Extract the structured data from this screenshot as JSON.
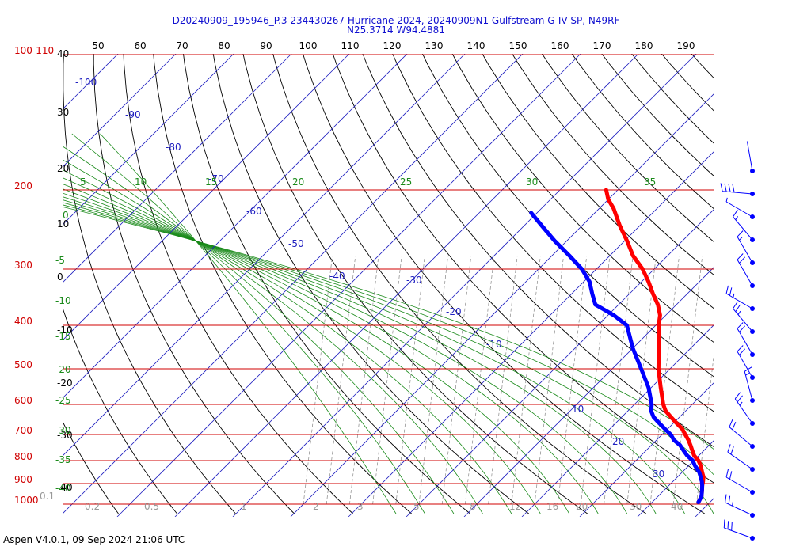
{
  "header": {
    "title_line1": "D20240909_195946_P.3 234430267 Hurricane 2024, 20240909N1 Gulfstream G-IV SP, N49RF",
    "title_line2": "N25.3714 W94.4881"
  },
  "footer": {
    "text": "Aspen V4.0.1, 09 Sep 2024  21:06 UTC"
  },
  "chart_data": {
    "type": "line",
    "subtype": "skew-t log-p",
    "pressure_label_top": "100-110",
    "pressure_labels": [
      "200",
      "300",
      "400",
      "500",
      "600",
      "700",
      "800",
      "900",
      "1000"
    ],
    "pressure_levels": [
      100,
      200,
      300,
      400,
      500,
      600,
      700,
      800,
      900,
      1000
    ],
    "temp_f_labels": [
      "50",
      "60",
      "70",
      "80",
      "90",
      "100",
      "110",
      "120",
      "130",
      "140",
      "150",
      "160",
      "170",
      "180",
      "190"
    ],
    "temp_c_labels": [
      "40",
      "30",
      "20",
      "10",
      "0",
      "-10",
      "-20",
      "-30",
      "-40"
    ],
    "isotherm_labels": [
      "-100",
      "-90",
      "-80",
      "-70",
      "-60",
      "-50",
      "-40",
      "-30",
      "-20",
      "-10",
      "10",
      "20",
      "30"
    ],
    "dry_adiabat_labels": [
      "5",
      "10",
      "15",
      "20",
      "25",
      "30",
      "35"
    ],
    "wet_adiabat_labels": [
      "0",
      "-5",
      "-10",
      "-15",
      "-20",
      "-25",
      "-30",
      "-35",
      "-40"
    ],
    "mixing_ratio_labels": [
      "0.1",
      "0.2",
      "0.5",
      "1",
      "2",
      "3",
      "5",
      "8",
      "12",
      "16",
      "20",
      "30",
      "40"
    ],
    "series": [
      {
        "role": "temperature",
        "color": "#ff0000",
        "points": [
          [
            200,
            -42
          ],
          [
            210,
            -40
          ],
          [
            220,
            -37.5
          ],
          [
            240,
            -33.5
          ],
          [
            260,
            -29.5
          ],
          [
            280,
            -26
          ],
          [
            300,
            -22
          ],
          [
            320,
            -18.8
          ],
          [
            340,
            -16
          ],
          [
            360,
            -13.2
          ],
          [
            380,
            -11
          ],
          [
            400,
            -9.5
          ],
          [
            450,
            -5.5
          ],
          [
            500,
            -2
          ],
          [
            550,
            1.6
          ],
          [
            600,
            5
          ],
          [
            620,
            6.5
          ],
          [
            640,
            8.5
          ],
          [
            660,
            10.5
          ],
          [
            680,
            12.5
          ],
          [
            700,
            14
          ],
          [
            720,
            15.5
          ],
          [
            740,
            16.8
          ],
          [
            760,
            18
          ],
          [
            780,
            19.2
          ],
          [
            800,
            20.8
          ],
          [
            820,
            22
          ],
          [
            850,
            23.5
          ],
          [
            870,
            24.5
          ],
          [
            890,
            25.2
          ],
          [
            910,
            25.8
          ],
          [
            930,
            26.5
          ],
          [
            960,
            27.5
          ],
          [
            990,
            28
          ]
        ]
      },
      {
        "role": "dewpoint",
        "color": "#0000ff",
        "points": [
          [
            225,
            -51
          ],
          [
            240,
            -47
          ],
          [
            260,
            -42
          ],
          [
            280,
            -37
          ],
          [
            300,
            -32.5
          ],
          [
            320,
            -29
          ],
          [
            340,
            -26.5
          ],
          [
            360,
            -24
          ],
          [
            380,
            -19
          ],
          [
            400,
            -15
          ],
          [
            450,
            -10
          ],
          [
            500,
            -5
          ],
          [
            550,
            -0.5
          ],
          [
            600,
            3
          ],
          [
            620,
            4
          ],
          [
            640,
            5.5
          ],
          [
            660,
            7.5
          ],
          [
            680,
            9.5
          ],
          [
            700,
            11.5
          ],
          [
            720,
            13
          ],
          [
            740,
            15
          ],
          [
            760,
            16.5
          ],
          [
            780,
            18
          ],
          [
            800,
            19.8
          ],
          [
            820,
            21
          ],
          [
            850,
            23
          ],
          [
            870,
            24
          ],
          [
            890,
            25
          ],
          [
            910,
            25.8
          ],
          [
            930,
            26.5
          ],
          [
            960,
            27.5
          ],
          [
            990,
            28
          ]
        ]
      }
    ],
    "wind_barbs": [
      {
        "p": "100",
        "dir": 350,
        "spd": 0
      },
      {
        "p": "200",
        "dir": 275,
        "spd": 40
      },
      {
        "p": "250",
        "dir": 300,
        "spd": 5
      },
      {
        "p": "300",
        "dir": 320,
        "spd": 15
      },
      {
        "p": "350",
        "dir": 330,
        "spd": 15
      },
      {
        "p": "400",
        "dir": 330,
        "spd": 20
      },
      {
        "p": "450",
        "dir": 300,
        "spd": 25
      },
      {
        "p": "500",
        "dir": 320,
        "spd": 25
      },
      {
        "p": "550",
        "dir": 330,
        "spd": 20
      },
      {
        "p": "600",
        "dir": 330,
        "spd": 20
      },
      {
        "p": "650",
        "dir": 345,
        "spd": 15
      },
      {
        "p": "700",
        "dir": 325,
        "spd": 25
      },
      {
        "p": "750",
        "dir": 310,
        "spd": 20
      },
      {
        "p": "800",
        "dir": 305,
        "spd": 20
      },
      {
        "p": "850",
        "dir": 300,
        "spd": 20
      },
      {
        "p": "900",
        "dir": 295,
        "spd": 25
      },
      {
        "p": "950",
        "dir": 290,
        "spd": 30
      }
    ]
  }
}
